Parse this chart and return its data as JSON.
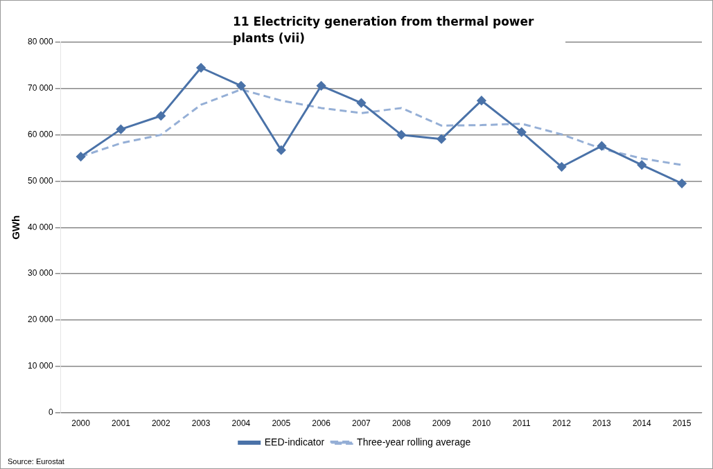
{
  "chart_data": {
    "type": "line",
    "title": "11 Electricity generation from thermal power plants (vii)",
    "ylabel": "GWh",
    "categories": [
      "2000",
      "2001",
      "2002",
      "2003",
      "2004",
      "2005",
      "2006",
      "2007",
      "2008",
      "2009",
      "2010",
      "2011",
      "2012",
      "2013",
      "2014",
      "2015"
    ],
    "series": [
      {
        "name": "EED-indicator",
        "color": "#4a72a8",
        "marker": "diamond",
        "line_style": "solid",
        "values": [
          55300,
          61200,
          64100,
          74500,
          70600,
          56700,
          70600,
          66900,
          60000,
          59100,
          67400,
          60600,
          53100,
          57600,
          53500,
          49500
        ]
      },
      {
        "name": "Three-year rolling average",
        "color": "#95afd6",
        "marker": "none",
        "line_style": "dashed",
        "values": [
          55300,
          58200,
          60000,
          66500,
          69800,
          67400,
          65800,
          64700,
          65800,
          62000,
          62100,
          62400,
          60100,
          57000,
          54900,
          53500
        ]
      }
    ],
    "ylim": [
      0,
      80000
    ],
    "yticks": [
      {
        "value": 0,
        "label": "0"
      },
      {
        "value": 10000,
        "label": "10 000"
      },
      {
        "value": 20000,
        "label": "20 000"
      },
      {
        "value": 30000,
        "label": "30 000"
      },
      {
        "value": 40000,
        "label": "40 000"
      },
      {
        "value": 50000,
        "label": "50 000"
      },
      {
        "value": 60000,
        "label": "60 000"
      },
      {
        "value": 70000,
        "label": "70 000"
      },
      {
        "value": 80000,
        "label": "80 000"
      }
    ],
    "grid": "y",
    "legend": "bottom",
    "annotations": [
      "Source: Eurostat"
    ]
  }
}
